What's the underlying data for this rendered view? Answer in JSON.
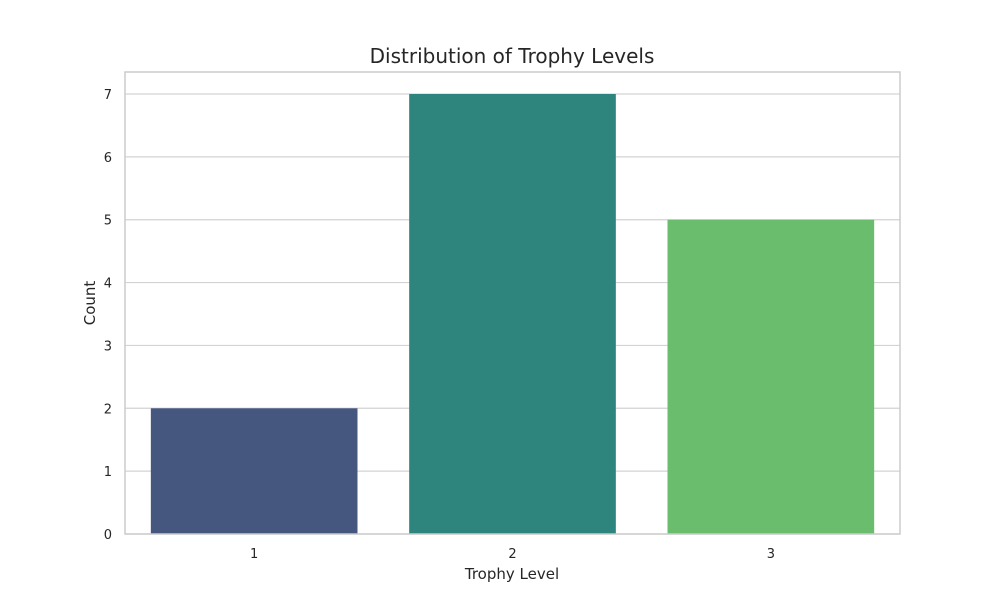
{
  "chart_data": {
    "type": "bar",
    "title": "Distribution of Trophy Levels",
    "xlabel": "Trophy Level",
    "ylabel": "Count",
    "categories": [
      "1",
      "2",
      "3"
    ],
    "values": [
      2,
      7,
      5
    ],
    "colors": [
      "#46577f",
      "#2e857d",
      "#6abd6d"
    ],
    "ylim": [
      0,
      7.35
    ],
    "yticks": [
      0,
      1,
      2,
      3,
      4,
      5,
      6,
      7
    ],
    "grid": true,
    "grid_color": "#d3d3d3",
    "frame_color": "#cccccc"
  }
}
